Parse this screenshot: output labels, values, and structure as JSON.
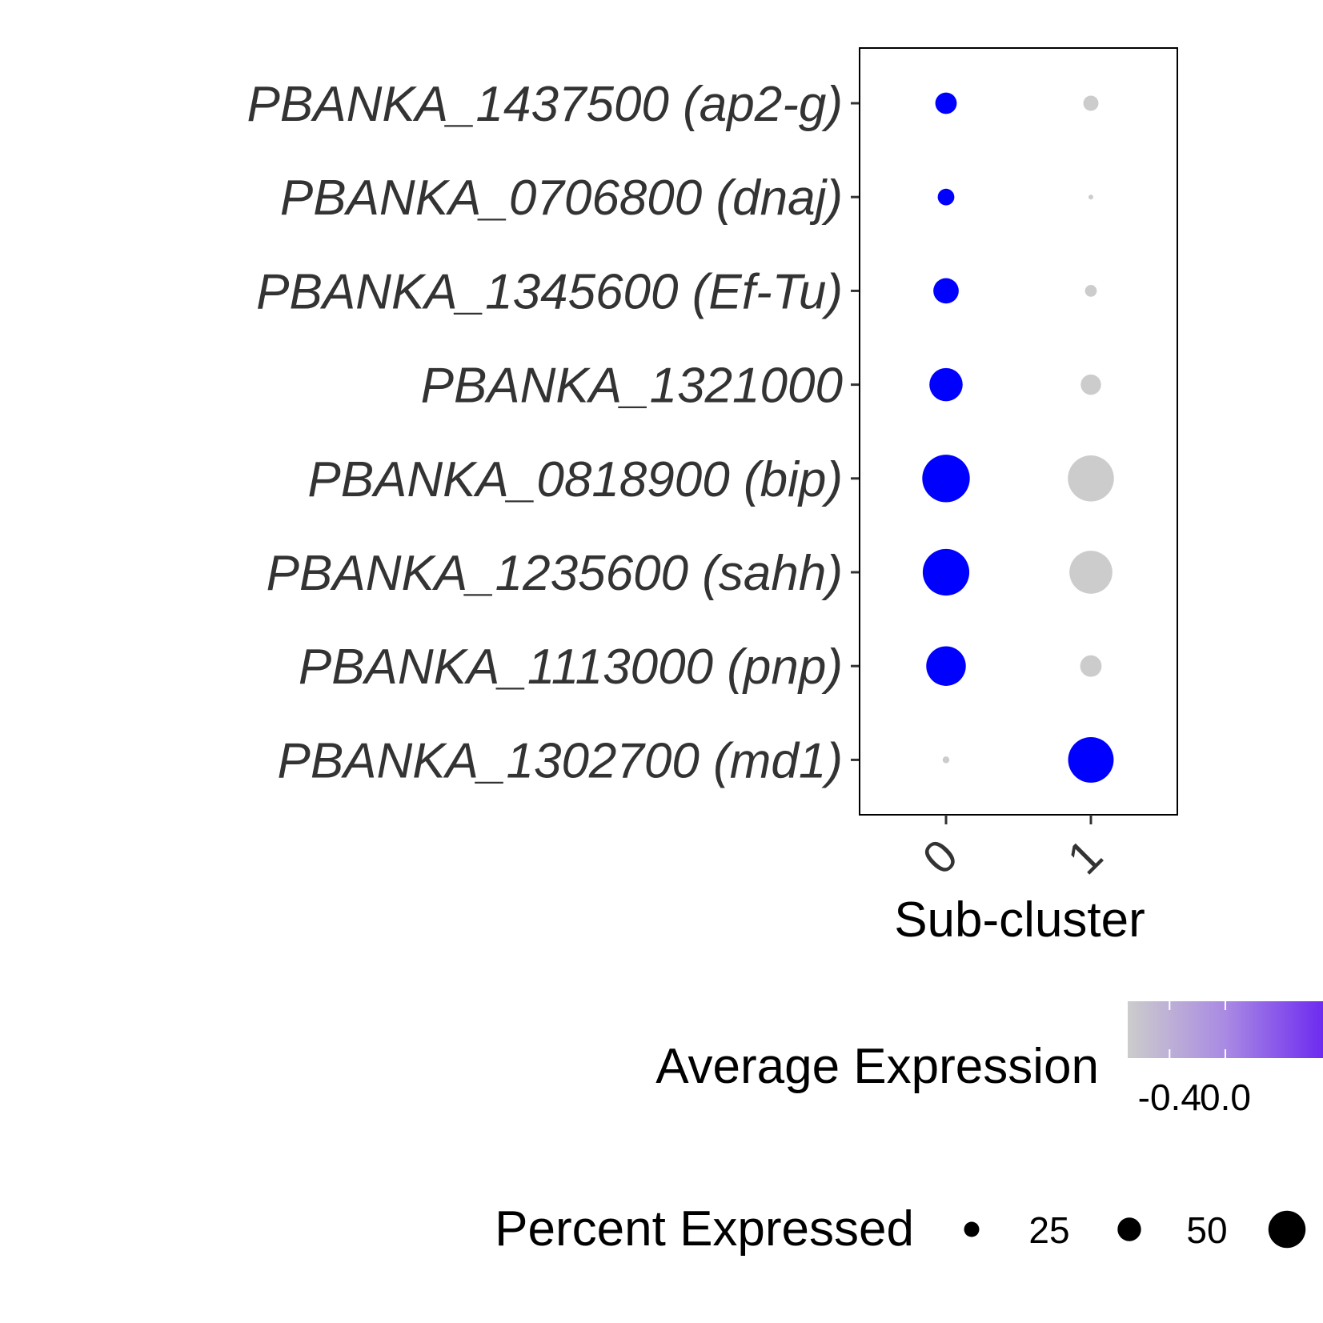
{
  "chart_data": {
    "type": "dotplot",
    "xlabel": "Sub-cluster",
    "categories": [
      "0",
      "1"
    ],
    "genes": [
      "PBANKA_1437500 (ap2-g)",
      "PBANKA_0706800 (dnaj)",
      "PBANKA_1345600 (Ef-Tu)",
      "PBANKA_1321000",
      "PBANKA_0818900 (bip)",
      "PBANKA_1235600 (sahh)",
      "PBANKA_1113000 (pnp)",
      "PBANKA_1302700 (md1)"
    ],
    "percent_expressed": [
      [
        10,
        5
      ],
      [
        6,
        0.5
      ],
      [
        14,
        3
      ],
      [
        24,
        9
      ],
      [
        49,
        46
      ],
      [
        47,
        40
      ],
      [
        34,
        10
      ],
      [
        1,
        45
      ]
    ],
    "average_expression": [
      [
        0.7,
        -0.7
      ],
      [
        0.7,
        -0.7
      ],
      [
        0.7,
        -0.7
      ],
      [
        0.7,
        -0.7
      ],
      [
        0.7,
        -0.7
      ],
      [
        0.7,
        -0.7
      ],
      [
        0.7,
        -0.7
      ],
      [
        -0.7,
        0.7
      ]
    ],
    "color_low": "#cccccc",
    "color_high": "#0000ff",
    "legend_color": {
      "title": "Average Expression",
      "ticks": [
        -0.4,
        0.0
      ],
      "tick_labels": [
        "-0.4",
        "0.0"
      ],
      "range": [
        -0.7,
        0.7
      ]
    },
    "legend_size": {
      "title": "Percent Expressed",
      "ticks": [
        25,
        50
      ],
      "tick_labels": [
        "25",
        "50"
      ],
      "range": [
        0,
        75
      ]
    }
  }
}
